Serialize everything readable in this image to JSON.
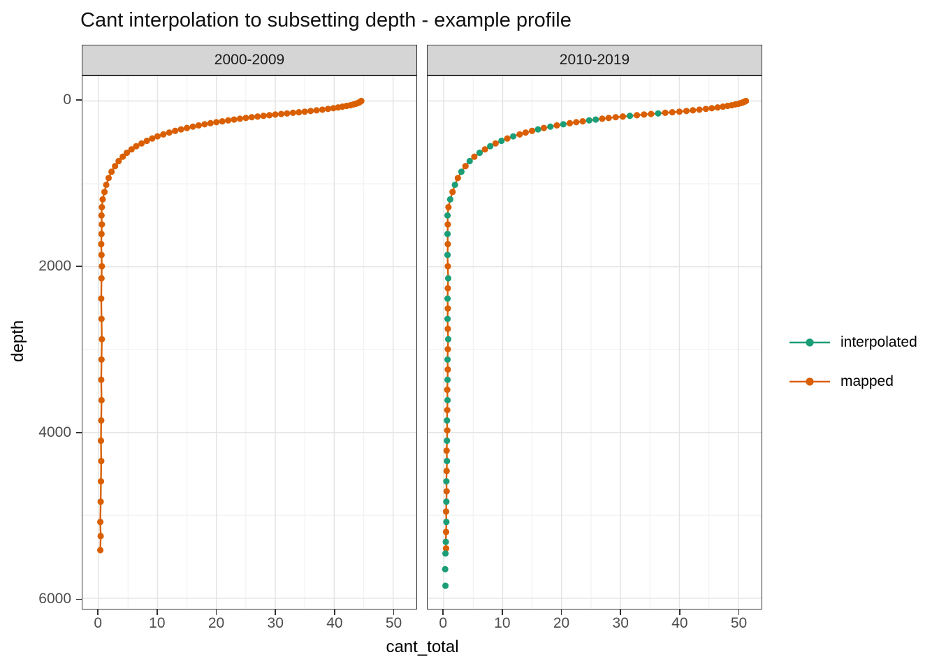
{
  "page": {
    "background": "#FFFFFF"
  },
  "style": {
    "grid_major": "#E4E4E4",
    "grid_minor": "#F2F2F2",
    "strip_bg": "#D5D5D5",
    "border": "#333333",
    "tick_text": "#4D4D4D",
    "axis_text": "#000000"
  },
  "chart_data": {
    "type": "scatter",
    "title": "Cant interpolation to subsetting depth - example profile",
    "xlabel": "cant_total",
    "ylabel": "depth",
    "x_ticks": [
      0,
      10,
      20,
      30,
      40,
      50
    ],
    "x_minor_ticks": [
      5,
      15,
      25,
      35,
      45
    ],
    "y_ticks": [
      0,
      2000,
      4000,
      6000
    ],
    "y_minor_ticks": [
      1000,
      3000,
      5000
    ],
    "xlim": [
      -2.74,
      53.95
    ],
    "ylim": [
      -294,
      6123
    ],
    "y_axis": "depth increases downward (reversed axis)",
    "grid": "major and minor, light grey on white, black panel border (theme_bw)",
    "legend_position": "right",
    "legend": [
      {
        "label": "interpolated",
        "color": "#1B9E77"
      },
      {
        "label": "mapped",
        "color": "#D95F02"
      }
    ],
    "series_key": {
      "m": "mapped",
      "i": "interpolated"
    },
    "colors": {
      "mapped": "#D95F02",
      "interpolated": "#1B9E77"
    },
    "point_format": "[cant_total, depth, series]",
    "facets": [
      {
        "label": "2000-2009",
        "profile": [
          [
            44.6,
            0,
            "m"
          ],
          [
            44.5,
            6,
            "m"
          ],
          [
            44.35,
            12,
            "m"
          ],
          [
            44.2,
            19,
            "m"
          ],
          [
            43.95,
            26,
            "m"
          ],
          [
            43.65,
            34,
            "m"
          ],
          [
            43.25,
            42,
            "m"
          ],
          [
            42.75,
            51,
            "m"
          ],
          [
            42.1,
            60,
            "m"
          ],
          [
            41.4,
            69,
            "m"
          ],
          [
            40.65,
            78,
            "m"
          ],
          [
            39.85,
            87,
            "m"
          ],
          [
            38.95,
            96,
            "m"
          ],
          [
            38.0,
            105,
            "m"
          ],
          [
            37.0,
            113,
            "m"
          ],
          [
            36.0,
            121,
            "m"
          ],
          [
            35.0,
            129,
            "m"
          ],
          [
            34.0,
            136,
            "m"
          ],
          [
            33.0,
            143,
            "m"
          ],
          [
            32.0,
            150,
            "m"
          ],
          [
            31.0,
            157,
            "m"
          ],
          [
            30.0,
            164,
            "m"
          ],
          [
            29.0,
            172,
            "m"
          ],
          [
            28.0,
            180,
            "m"
          ],
          [
            27.0,
            188,
            "m"
          ],
          [
            26.0,
            196,
            "m"
          ],
          [
            25.0,
            205,
            "m"
          ],
          [
            24.0,
            214,
            "m"
          ],
          [
            23.0,
            224,
            "m"
          ],
          [
            22.0,
            234,
            "m"
          ],
          [
            21.0,
            245,
            "m"
          ],
          [
            20.0,
            256,
            "m"
          ],
          [
            19.0,
            268,
            "m"
          ],
          [
            18.0,
            281,
            "m"
          ],
          [
            17.0,
            295,
            "m"
          ],
          [
            16.0,
            310,
            "m"
          ],
          [
            15.0,
            326,
            "m"
          ],
          [
            14.0,
            343,
            "m"
          ],
          [
            13.0,
            361,
            "m"
          ],
          [
            12.0,
            381,
            "m"
          ],
          [
            11.0,
            403,
            "m"
          ],
          [
            10.0,
            427,
            "m"
          ],
          [
            9.1,
            453,
            "m"
          ],
          [
            8.2,
            481,
            "m"
          ],
          [
            7.3,
            512,
            "m"
          ],
          [
            6.4,
            546,
            "m"
          ],
          [
            5.6,
            584,
            "m"
          ],
          [
            4.8,
            626,
            "m"
          ],
          [
            4.1,
            673,
            "m"
          ],
          [
            3.4,
            726,
            "m"
          ],
          [
            2.8,
            786,
            "m"
          ],
          [
            2.2,
            854,
            "m"
          ],
          [
            1.7,
            930,
            "m"
          ],
          [
            1.3,
            1012,
            "m"
          ],
          [
            1.0,
            1098,
            "m"
          ],
          [
            0.7,
            1188,
            "m"
          ],
          [
            0.55,
            1282,
            "m"
          ],
          [
            0.5,
            1382,
            "m"
          ],
          [
            0.55,
            1490,
            "m"
          ],
          [
            0.5,
            1605,
            "m"
          ],
          [
            0.45,
            1728,
            "m"
          ],
          [
            0.5,
            1858,
            "m"
          ],
          [
            0.55,
            1995,
            "m"
          ],
          [
            0.5,
            2140,
            "m"
          ],
          [
            0.45,
            2385,
            "m"
          ],
          [
            0.5,
            2630,
            "m"
          ],
          [
            0.55,
            2875,
            "m"
          ],
          [
            0.5,
            3120,
            "m"
          ],
          [
            0.45,
            3365,
            "m"
          ],
          [
            0.5,
            3610,
            "m"
          ],
          [
            0.45,
            3855,
            "m"
          ],
          [
            0.4,
            4100,
            "m"
          ],
          [
            0.45,
            4345,
            "m"
          ],
          [
            0.4,
            4590,
            "m"
          ],
          [
            0.35,
            4835,
            "m"
          ],
          [
            0.3,
            5080,
            "m"
          ],
          [
            0.35,
            5250,
            "m"
          ],
          [
            0.3,
            5420,
            "m"
          ]
        ],
        "isolated_points": []
      },
      {
        "label": "2010-2019",
        "profile": [
          [
            51.3,
            0,
            "m"
          ],
          [
            51.15,
            6,
            "m"
          ],
          [
            50.95,
            12,
            "m"
          ],
          [
            50.7,
            19,
            "m"
          ],
          [
            50.4,
            26,
            "m"
          ],
          [
            50.0,
            34,
            "m"
          ],
          [
            49.5,
            42,
            "m"
          ],
          [
            48.9,
            51,
            "m"
          ],
          [
            48.2,
            60,
            "m"
          ],
          [
            47.4,
            69,
            "m"
          ],
          [
            46.5,
            78,
            "m"
          ],
          [
            45.5,
            87,
            "m"
          ],
          [
            44.5,
            96,
            "m"
          ],
          [
            43.4,
            105,
            "m"
          ],
          [
            42.3,
            113,
            "m"
          ],
          [
            41.2,
            121,
            "m"
          ],
          [
            40.0,
            129,
            "m"
          ],
          [
            38.8,
            136,
            "m"
          ],
          [
            37.6,
            143,
            "m"
          ],
          [
            36.4,
            150,
            "i"
          ],
          [
            35.2,
            157,
            "m"
          ],
          [
            34.0,
            164,
            "m"
          ],
          [
            32.8,
            172,
            "m"
          ],
          [
            31.6,
            180,
            "i"
          ],
          [
            30.4,
            188,
            "m"
          ],
          [
            29.2,
            196,
            "m"
          ],
          [
            28.0,
            205,
            "m"
          ],
          [
            26.9,
            214,
            "m"
          ],
          [
            25.8,
            224,
            "i"
          ],
          [
            24.7,
            234,
            "i"
          ],
          [
            23.6,
            245,
            "m"
          ],
          [
            22.5,
            256,
            "m"
          ],
          [
            21.4,
            268,
            "m"
          ],
          [
            20.3,
            281,
            "i"
          ],
          [
            19.2,
            295,
            "m"
          ],
          [
            18.1,
            310,
            "i"
          ],
          [
            17.0,
            326,
            "m"
          ],
          [
            16.0,
            343,
            "i"
          ],
          [
            15.0,
            361,
            "m"
          ],
          [
            13.9,
            381,
            "m"
          ],
          [
            12.9,
            403,
            "m"
          ],
          [
            11.8,
            427,
            "i"
          ],
          [
            10.8,
            453,
            "m"
          ],
          [
            9.8,
            481,
            "i"
          ],
          [
            8.8,
            512,
            "m"
          ],
          [
            7.9,
            546,
            "i"
          ],
          [
            7.0,
            584,
            "m"
          ],
          [
            6.1,
            626,
            "i"
          ],
          [
            5.2,
            673,
            "m"
          ],
          [
            4.4,
            726,
            "i"
          ],
          [
            3.7,
            786,
            "m"
          ],
          [
            3.0,
            854,
            "i"
          ],
          [
            2.4,
            930,
            "m"
          ],
          [
            1.9,
            1012,
            "i"
          ],
          [
            1.5,
            1098,
            "m"
          ],
          [
            1.1,
            1188,
            "i"
          ],
          [
            0.8,
            1282,
            "m"
          ],
          [
            0.65,
            1382,
            "i"
          ],
          [
            0.7,
            1490,
            "m"
          ],
          [
            0.65,
            1605,
            "i"
          ],
          [
            0.7,
            1728,
            "m"
          ],
          [
            0.65,
            1858,
            "i"
          ],
          [
            0.7,
            1995,
            "m"
          ],
          [
            0.75,
            2140,
            "i"
          ],
          [
            0.7,
            2260,
            "m"
          ],
          [
            0.65,
            2385,
            "i"
          ],
          [
            0.7,
            2505,
            "m"
          ],
          [
            0.65,
            2630,
            "i"
          ],
          [
            0.7,
            2750,
            "m"
          ],
          [
            0.75,
            2875,
            "i"
          ],
          [
            0.7,
            2995,
            "m"
          ],
          [
            0.65,
            3120,
            "i"
          ],
          [
            0.7,
            3240,
            "m"
          ],
          [
            0.65,
            3365,
            "i"
          ],
          [
            0.6,
            3485,
            "m"
          ],
          [
            0.65,
            3610,
            "i"
          ],
          [
            0.6,
            3730,
            "m"
          ],
          [
            0.55,
            3855,
            "i"
          ],
          [
            0.6,
            3975,
            "m"
          ],
          [
            0.55,
            4100,
            "i"
          ],
          [
            0.5,
            4220,
            "m"
          ],
          [
            0.55,
            4345,
            "i"
          ],
          [
            0.5,
            4465,
            "m"
          ],
          [
            0.45,
            4590,
            "i"
          ],
          [
            0.5,
            4710,
            "m"
          ],
          [
            0.45,
            4835,
            "i"
          ],
          [
            0.4,
            4955,
            "m"
          ],
          [
            0.45,
            5080,
            "i"
          ],
          [
            0.4,
            5200,
            "m"
          ],
          [
            0.35,
            5320,
            "i"
          ],
          [
            0.4,
            5400,
            "m"
          ],
          [
            0.3,
            5460,
            "i"
          ]
        ],
        "isolated_points": [
          [
            0.25,
            5650,
            "i"
          ],
          [
            0.3,
            5850,
            "i"
          ]
        ]
      }
    ]
  }
}
